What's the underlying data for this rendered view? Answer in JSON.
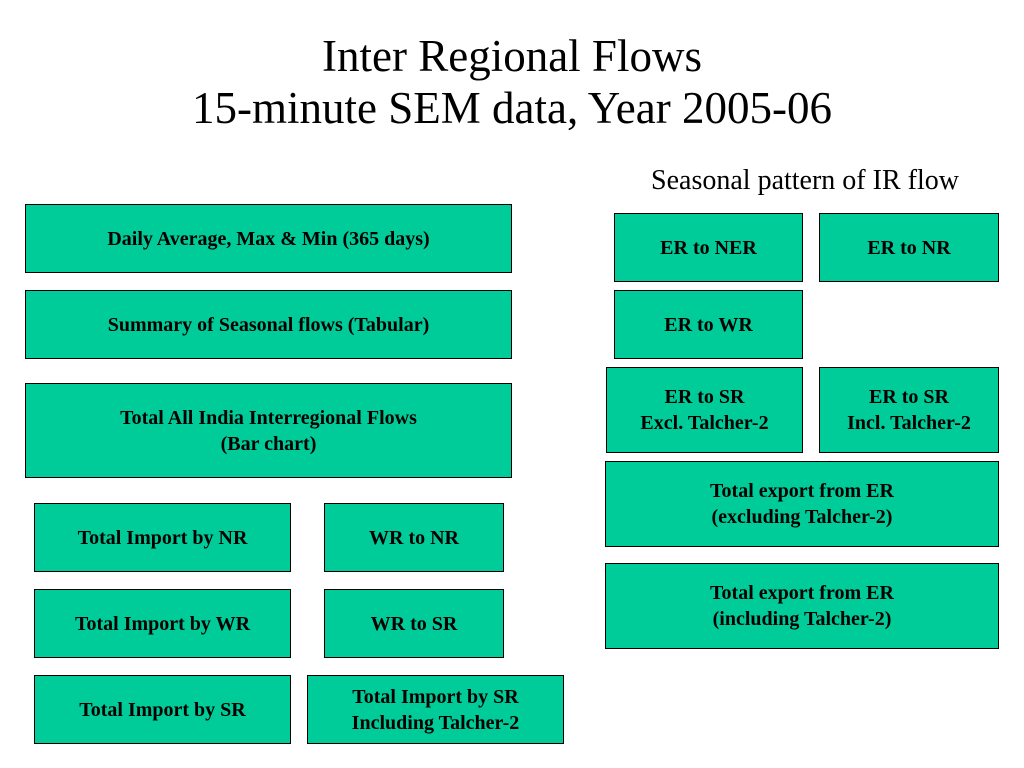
{
  "title": {
    "line1": "Inter Regional Flows",
    "line2": "15-minute SEM data,  Year 2005-06"
  },
  "subtitle": "Seasonal pattern of IR flow",
  "left_buttons": {
    "daily": "Daily Average, Max & Min (365 days)",
    "summary": "Summary of Seasonal flows (Tabular)",
    "total_all_india": "Total All India Interregional Flows\n(Bar chart)",
    "import_nr": "Total Import by NR",
    "wr_to_nr": "WR to NR",
    "import_wr": "Total Import by WR",
    "wr_to_sr": "WR to SR",
    "import_sr": "Total Import by SR",
    "import_sr_incl": "Total Import by SR\nIncluding Talcher-2"
  },
  "right_buttons": {
    "er_to_ner": "ER to NER",
    "er_to_nr": "ER to NR",
    "er_to_wr": "ER to WR",
    "er_to_sr_excl": "ER to SR\nExcl. Talcher-2",
    "er_to_sr_incl": "ER to SR\nIncl. Talcher-2",
    "export_excl": "Total export from ER\n(excluding Talcher-2)",
    "export_incl": "Total export from ER\n(including Talcher-2)"
  }
}
